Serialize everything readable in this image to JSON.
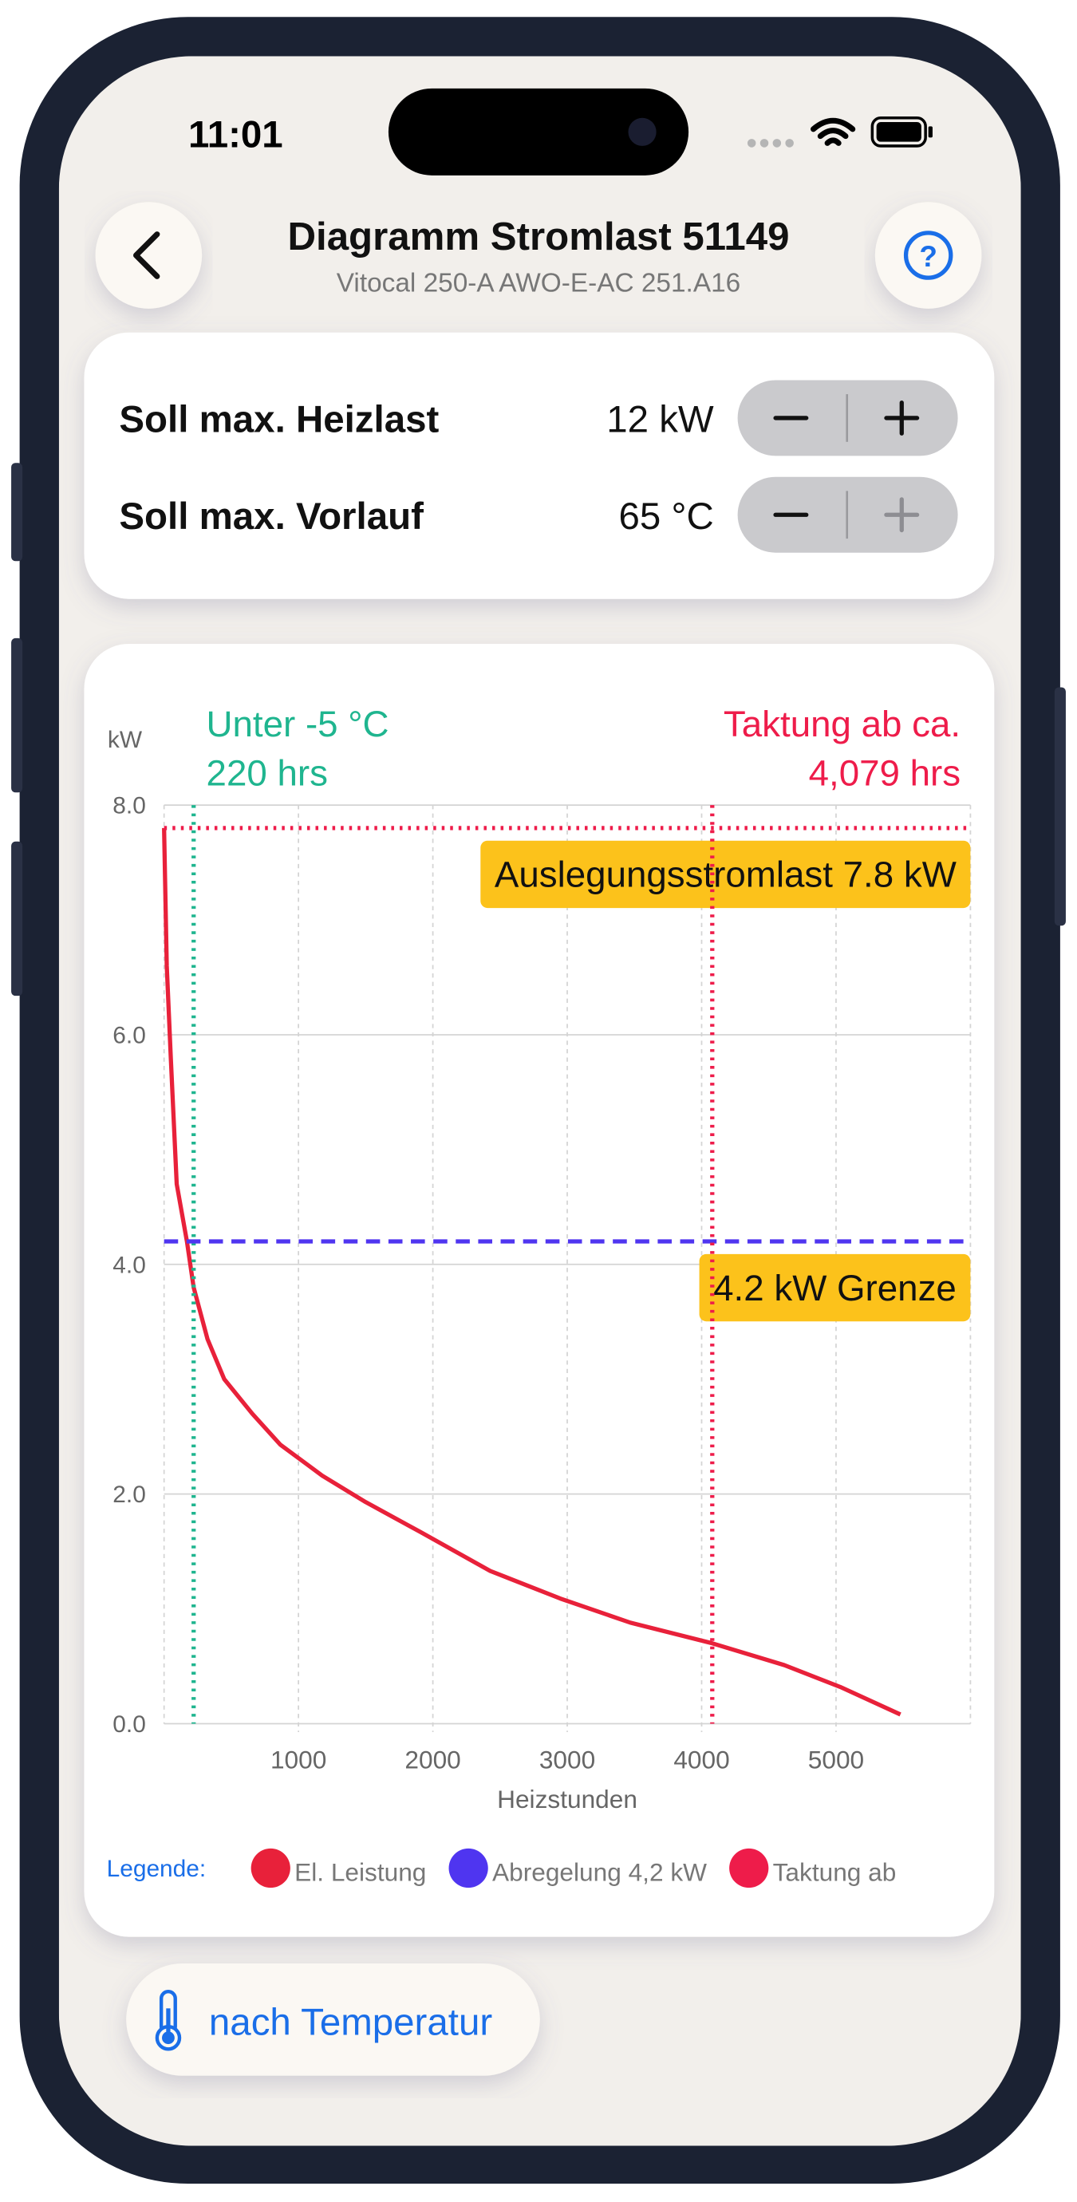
{
  "status": {
    "time": "11:01"
  },
  "header": {
    "title": "Diagramm Stromlast 51149",
    "subtitle": "Vitocal 250-A AWO-E-AC 251.A16"
  },
  "settings": [
    {
      "label": "Soll max. Heizlast",
      "value": "12 kW"
    },
    {
      "label": "Soll max. Vorlauf",
      "value": "65 °C"
    }
  ],
  "chart_data": {
    "type": "line",
    "ylabel": "kW",
    "xlabel": "Heizstunden",
    "x": [
      0,
      20,
      50,
      94,
      170,
      220,
      323,
      448,
      656,
      865,
      1177,
      1500,
      1906,
      2427,
      2948,
      3469,
      4079,
      4615,
      5031,
      5479
    ],
    "series": [
      {
        "name": "El. Leistung",
        "color": "#e8213a",
        "values": [
          7.8,
          6.6,
          5.8,
          4.7,
          4.2,
          3.8,
          3.35,
          3.0,
          2.7,
          2.43,
          2.16,
          1.93,
          1.67,
          1.33,
          1.09,
          0.88,
          0.7,
          0.51,
          0.32,
          0.08
        ]
      }
    ],
    "rules": [
      {
        "axis": "x",
        "value": 220,
        "color": "#1fb58f",
        "style": "dotted",
        "label": [
          "Unter -5 °C",
          "220 hrs"
        ]
      },
      {
        "axis": "y",
        "value": 7.8,
        "color": "#ee1c4a",
        "style": "dotted",
        "label": "Auslegungsstromlast 7.8 kW"
      },
      {
        "axis": "y",
        "value": 4.2,
        "color": "#4f35f0",
        "style": "dashed",
        "label": "4.2 kW Grenze",
        "name": "Abregelung 4,2 kW"
      },
      {
        "axis": "x",
        "value": 4079,
        "color": "#ee1c4a",
        "style": "dotted",
        "label": [
          "Taktung ab ca.",
          "4,079 hrs"
        ],
        "name": "Taktung ab"
      }
    ],
    "xlim": [
      0,
      6000
    ],
    "xticks": [
      1000,
      2000,
      3000,
      4000,
      5000
    ],
    "ylim": [
      0,
      8
    ],
    "yticks": [
      {
        "value": 0,
        "label": "0.0"
      },
      {
        "value": 2,
        "label": "2.0"
      },
      {
        "value": 4,
        "label": "4.0"
      },
      {
        "value": 6,
        "label": "6.0"
      },
      {
        "value": 8,
        "label": "8.0"
      }
    ],
    "grid": true,
    "legend_title": "Legende:"
  },
  "button": {
    "label": "nach Temperatur"
  }
}
